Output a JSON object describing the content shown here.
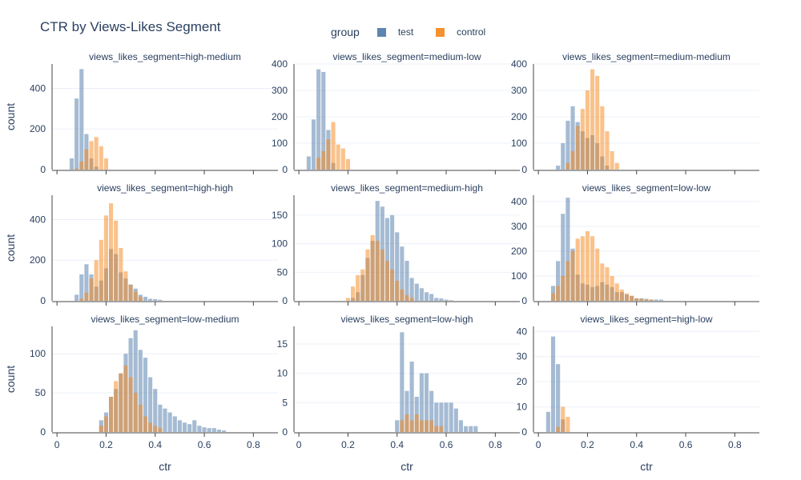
{
  "chart_data": {
    "type": "histogram",
    "title": "CTR by Views-Likes Segment",
    "legend": {
      "title": "group",
      "placement": "top-center",
      "items": [
        {
          "name": "test",
          "color": "#4c78a8"
        },
        {
          "name": "control",
          "color": "#f58518"
        }
      ]
    },
    "xlabel": "ctr",
    "ylabel": "count",
    "x_ticks": [
      0,
      0.2,
      0.4,
      0.6,
      0.8
    ],
    "xlim": [
      -0.02,
      0.9
    ],
    "bin_width": 0.02,
    "opacity": 0.5,
    "grid": true,
    "panels": [
      {
        "label": "views_likes_segment=high-medium",
        "ylim": [
          0,
          520
        ],
        "yticks": [
          0,
          200,
          400
        ],
        "test": {
          "start": 0.05,
          "values": [
            55,
            350,
            495,
            175,
            55,
            15
          ]
        },
        "control": {
          "start": 0.07,
          "values": [
            5,
            40,
            100,
            140,
            160,
            115,
            55
          ]
        }
      },
      {
        "label": "views_likes_segment=medium-low",
        "ylim": [
          0,
          400
        ],
        "yticks": [
          0,
          100,
          200,
          300,
          400
        ],
        "test": {
          "start": 0.03,
          "values": [
            50,
            190,
            380,
            370,
            150,
            25
          ]
        },
        "control": {
          "start": 0.07,
          "values": [
            45,
            70,
            115,
            180,
            95,
            80,
            40
          ]
        }
      },
      {
        "label": "views_likes_segment=medium-medium",
        "ylim": [
          0,
          400
        ],
        "yticks": [
          0,
          100,
          200,
          300,
          400
        ],
        "test": {
          "start": 0.07,
          "values": [
            15,
            100,
            185,
            240,
            180,
            145,
            120,
            130,
            100,
            50,
            15
          ]
        },
        "control": {
          "start": 0.11,
          "values": [
            25,
            70,
            165,
            230,
            300,
            380,
            355,
            240,
            145,
            70,
            25
          ]
        }
      },
      {
        "label": "views_likes_segment=high-high",
        "ylim": [
          0,
          520
        ],
        "yticks": [
          0,
          200,
          400
        ],
        "test": {
          "start": 0.07,
          "values": [
            30,
            130,
            180,
            130,
            70,
            100,
            160,
            255,
            230,
            140,
            110,
            80,
            60,
            30,
            20,
            10,
            8,
            5
          ]
        },
        "control": {
          "start": 0.09,
          "values": [
            10,
            40,
            110,
            200,
            300,
            420,
            480,
            395,
            260,
            145,
            80,
            45,
            20
          ]
        }
      },
      {
        "label": "views_likes_segment=medium-high",
        "ylim": [
          0,
          185
        ],
        "yticks": [
          0,
          50,
          100,
          150
        ],
        "test": {
          "start": 0.21,
          "values": [
            5,
            15,
            45,
            75,
            105,
            175,
            165,
            145,
            150,
            120,
            95,
            70,
            40,
            30,
            22,
            15,
            12,
            5,
            4,
            2,
            1
          ]
        },
        "control": {
          "start": 0.19,
          "values": [
            5,
            25,
            45,
            55,
            90,
            115,
            105,
            90,
            70,
            55,
            35,
            20,
            10,
            5
          ]
        }
      },
      {
        "label": "views_likes_segment=low-low",
        "ylim": [
          0,
          425
        ],
        "yticks": [
          0,
          100,
          200,
          300,
          400
        ],
        "test": {
          "start": 0.05,
          "values": [
            60,
            160,
            350,
            415,
            210,
            105,
            70,
            65,
            55,
            60,
            75,
            65,
            55,
            35,
            35,
            25,
            20,
            10,
            10,
            8,
            5,
            5,
            5
          ]
        },
        "control": {
          "start": 0.05,
          "values": [
            30,
            60,
            100,
            160,
            200,
            250,
            260,
            280,
            260,
            210,
            150,
            135,
            100,
            70,
            45,
            30,
            20,
            10,
            8,
            5,
            5
          ]
        }
      },
      {
        "label": "views_likes_segment=low-medium",
        "ylim": [
          0,
          135
        ],
        "yticks": [
          0,
          50,
          100
        ],
        "test": {
          "start": 0.17,
          "values": [
            15,
            25,
            45,
            55,
            75,
            100,
            120,
            130,
            105,
            95,
            70,
            55,
            35,
            30,
            25,
            20,
            15,
            12,
            10,
            15,
            8,
            6,
            5,
            5,
            3,
            2
          ]
        },
        "control": {
          "start": 0.17,
          "values": [
            8,
            20,
            45,
            65,
            75,
            85,
            70,
            50,
            35,
            20,
            12,
            8,
            5
          ]
        }
      },
      {
        "label": "views_likes_segment=low-high",
        "ylim": [
          0,
          18
        ],
        "yticks": [
          0,
          5,
          10,
          15
        ],
        "test": {
          "start": 0.39,
          "values": [
            2,
            17,
            7,
            12,
            6,
            10,
            10,
            7,
            5,
            5,
            5,
            5,
            4,
            2,
            1,
            1,
            1
          ]
        },
        "control": {
          "start": 0.41,
          "values": [
            2,
            3,
            2,
            3,
            2,
            2,
            2,
            1,
            1
          ]
        }
      },
      {
        "label": "views_likes_segment=high-low",
        "ylim": [
          0,
          42
        ],
        "yticks": [
          0,
          10,
          20,
          30,
          40
        ],
        "test": {
          "start": 0.03,
          "values": [
            8,
            38,
            27,
            5
          ]
        },
        "control": {
          "start": 0.07,
          "values": [
            2,
            10,
            6
          ]
        }
      }
    ]
  }
}
